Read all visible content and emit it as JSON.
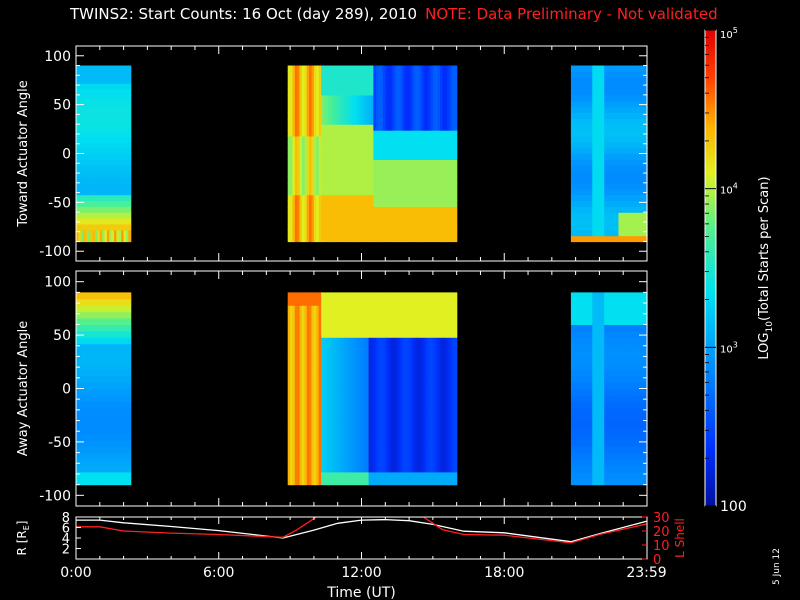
{
  "title": {
    "main": "TWINS2: Start Counts: 16 Oct (day 289), 2010",
    "note": "NOTE: Data Preliminary - Not validated"
  },
  "date_stamp": "5 Jun 12",
  "colors": {
    "note_red": "#ff2020",
    "r_line": "#ffffff",
    "l_shell_line": "#ff2020",
    "axes": "#ffffff",
    "background": "#000000"
  },
  "chart_data": [
    {
      "type": "heatmap",
      "name": "toward-panel",
      "ylabel": "Toward Actuator Angle",
      "ylim": [
        -110,
        110
      ],
      "yticks": [
        100,
        50,
        0,
        -50,
        -100
      ],
      "xlim": [
        0,
        24
      ],
      "data_coverage_hours": [
        [
          0.0,
          2.0
        ],
        [
          2.3,
          2.45
        ],
        [
          8.9,
          16.0
        ],
        [
          20.8,
          23.99
        ]
      ],
      "angle_range": [
        -90,
        90
      ],
      "dominant_levels": {
        "hour_0_2": "cyan/teal mid values (~10^3), orange at -80 to -90",
        "hour_9_10": "orange/red high (~10^4.5)",
        "hour_12_16": "dark blue low (~10^2.3) at 30 to 90 deg, yellow-green below 0",
        "hour_21_24": "light blue/cyan"
      }
    },
    {
      "type": "heatmap",
      "name": "away-panel",
      "ylabel": "Away Actuator Angle",
      "ylim": [
        -110,
        110
      ],
      "yticks": [
        100,
        50,
        0,
        -50,
        -100
      ],
      "xlim": [
        0,
        24
      ],
      "data_coverage_hours": [
        [
          0.0,
          2.0
        ],
        [
          2.3,
          2.45
        ],
        [
          8.9,
          16.0
        ],
        [
          20.8,
          23.99
        ]
      ],
      "angle_range": [
        -90,
        90
      ]
    },
    {
      "type": "line",
      "name": "orbit-panel",
      "x_ticks": [
        "0:00",
        "6:00",
        "12:00",
        "18:00",
        "23:59"
      ],
      "x_tick_hours": [
        0,
        6,
        12,
        18,
        23.98
      ],
      "xlabel": "Time (UT)",
      "ylabel_left": "R [R",
      "ylabel_left_sub": "E",
      "ylabel_left_end": "]",
      "ylabel_right": "L Shell",
      "left_ylim": [
        0,
        8
      ],
      "left_yticks": [
        8,
        6,
        4,
        2
      ],
      "right_ylim": [
        0,
        30
      ],
      "right_yticks": [
        30,
        20,
        10,
        0
      ],
      "series": [
        {
          "name": "R",
          "axis": "left",
          "x": [
            0,
            1,
            2,
            4,
            6,
            8.7,
            10,
            11,
            12,
            13,
            14,
            15,
            16.3,
            18,
            20.8,
            22,
            23.98
          ],
          "y": [
            7.4,
            7.4,
            6.9,
            6.2,
            5.4,
            4.0,
            5.5,
            6.8,
            7.4,
            7.5,
            7.3,
            6.6,
            5.3,
            5.0,
            3.3,
            4.8,
            7.2
          ]
        },
        {
          "name": "L Shell",
          "axis": "right",
          "x": [
            0,
            1,
            2,
            4,
            6,
            8.7,
            9.3,
            10.1,
            14.6,
            15.4,
            16.3,
            18,
            20.8,
            22,
            23.98
          ],
          "y": [
            23,
            23,
            20,
            18.5,
            17.5,
            15.5,
            21,
            30,
            30,
            21,
            17.5,
            17,
            11.5,
            17.5,
            25
          ]
        }
      ]
    }
  ],
  "colorbar": {
    "label_main": "LOG",
    "label_sub": "10",
    "label_end": "(Total Starts per Scan)",
    "ticks": [
      {
        "base": "10",
        "exp": "5",
        "value": 5
      },
      {
        "base": "10",
        "exp": "4",
        "value": 4
      },
      {
        "base": "10",
        "exp": "3",
        "value": 3
      },
      {
        "base": "100",
        "exp": "",
        "value": 2
      }
    ],
    "range_log": [
      2,
      5
    ]
  }
}
